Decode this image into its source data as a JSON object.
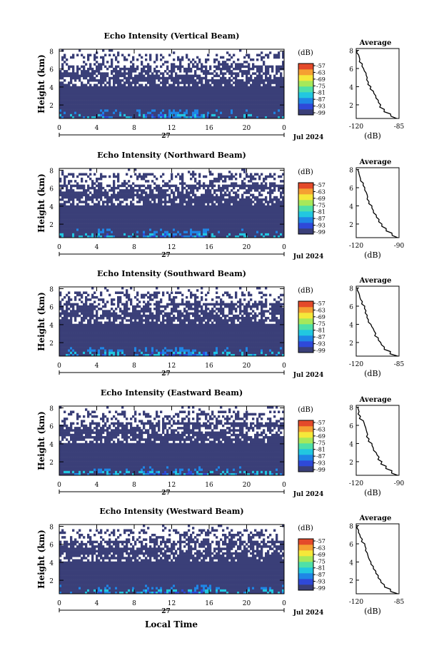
{
  "figure": {
    "x_axis_title": "Local Time",
    "day_label": "27",
    "date_label": "Jul 2024"
  },
  "colorbar": {
    "unit": "(dB)",
    "ticks": [
      "-57",
      "-63",
      "-69",
      "-75",
      "-81",
      "-87",
      "-93",
      "-99"
    ],
    "colors": [
      "#3a3f78",
      "#2f49d8",
      "#1f86e6",
      "#22c7e0",
      "#4fe0a8",
      "#a6e85a",
      "#f5e83a",
      "#f5a032",
      "#e44a2a"
    ]
  },
  "chart_data": [
    {
      "type": "heatmap",
      "title": "Echo Intensity (Vertical Beam)",
      "ylabel": "Height (km)",
      "x_ticks": [
        "0",
        "4",
        "8",
        "12",
        "16",
        "20",
        "0"
      ],
      "y_ticks": [
        "2",
        "4",
        "6",
        "8"
      ],
      "xlim": [
        0,
        24
      ],
      "ylim": [
        0.5,
        8.2
      ],
      "clim": [
        -99,
        -57
      ],
      "profile": {
        "title": "Average",
        "xlabel": "(dB)",
        "x_ticks": [
          "-120",
          "-85"
        ],
        "xlim": [
          -120,
          -85
        ],
        "y_ticks": [
          "2",
          "4",
          "6",
          "8"
        ],
        "heights": [
          0.5,
          1.0,
          1.5,
          2.0,
          2.5,
          3.0,
          3.5,
          4.0,
          4.5,
          5.0,
          5.5,
          6.0,
          6.5,
          7.0,
          7.5,
          8.0
        ],
        "values": [
          -87,
          -92,
          -97,
          -100,
          -102,
          -104,
          -106,
          -108,
          -110,
          -111,
          -112,
          -114,
          -115,
          -117,
          -118,
          -119
        ]
      }
    },
    {
      "type": "heatmap",
      "title": "Echo Intensity (Northward Beam)",
      "ylabel": "Height (km)",
      "x_ticks": [
        "0",
        "4",
        "8",
        "12",
        "16",
        "20",
        "0"
      ],
      "y_ticks": [
        "2",
        "4",
        "6",
        "8"
      ],
      "xlim": [
        0,
        24
      ],
      "ylim": [
        0.5,
        8.2
      ],
      "clim": [
        -99,
        -57
      ],
      "profile": {
        "title": "Average",
        "xlabel": "(dB)",
        "x_ticks": [
          "-120",
          "-90"
        ],
        "xlim": [
          -120,
          -90
        ],
        "y_ticks": [
          "2",
          "4",
          "6",
          "8"
        ],
        "heights": [
          0.5,
          1.0,
          1.5,
          2.0,
          2.5,
          3.0,
          3.5,
          4.0,
          4.5,
          5.0,
          5.5,
          6.0,
          6.5,
          7.0,
          7.5,
          8.0
        ],
        "values": [
          -91,
          -95,
          -99,
          -102,
          -104,
          -106,
          -108,
          -109,
          -111,
          -112,
          -113,
          -114,
          -115,
          -117,
          -118,
          -119
        ]
      }
    },
    {
      "type": "heatmap",
      "title": "Echo Intensity (Southward Beam)",
      "ylabel": "Height (km)",
      "x_ticks": [
        "0",
        "4",
        "8",
        "12",
        "16",
        "20",
        "0"
      ],
      "y_ticks": [
        "2",
        "4",
        "6",
        "8"
      ],
      "xlim": [
        0,
        24
      ],
      "ylim": [
        0.5,
        8.2
      ],
      "clim": [
        -99,
        -57
      ],
      "profile": {
        "title": "Average",
        "xlabel": "(dB)",
        "x_ticks": [
          "-120",
          "-85"
        ],
        "xlim": [
          -120,
          -85
        ],
        "y_ticks": [
          "2",
          "4",
          "6",
          "8"
        ],
        "heights": [
          0.5,
          1.0,
          1.5,
          2.0,
          2.5,
          3.0,
          3.5,
          4.0,
          4.5,
          5.0,
          5.5,
          6.0,
          6.5,
          7.0,
          7.5,
          8.0
        ],
        "values": [
          -86,
          -92,
          -97,
          -100,
          -102,
          -104,
          -106,
          -108,
          -110,
          -111,
          -112,
          -113,
          -115,
          -117,
          -118,
          -119
        ]
      }
    },
    {
      "type": "heatmap",
      "title": "Echo Intensity (Eastward Beam)",
      "ylabel": "Height (km)",
      "x_ticks": [
        "0",
        "4",
        "8",
        "12",
        "16",
        "20",
        "0"
      ],
      "y_ticks": [
        "2",
        "4",
        "6",
        "8"
      ],
      "xlim": [
        0,
        24
      ],
      "ylim": [
        0.5,
        8.2
      ],
      "clim": [
        -99,
        -57
      ],
      "profile": {
        "title": "Average",
        "xlabel": "(dB)",
        "x_ticks": [
          "-120",
          "-90"
        ],
        "xlim": [
          -120,
          -90
        ],
        "y_ticks": [
          "2",
          "4",
          "6",
          "8"
        ],
        "heights": [
          0.5,
          1.0,
          1.5,
          2.0,
          2.5,
          3.0,
          3.5,
          4.0,
          4.5,
          5.0,
          5.5,
          6.0,
          6.5,
          7.0,
          7.5,
          8.0
        ],
        "values": [
          -91,
          -95,
          -99,
          -102,
          -104,
          -106,
          -108,
          -109,
          -111,
          -112,
          -113,
          -114,
          -115,
          -117,
          -118,
          -119
        ]
      }
    },
    {
      "type": "heatmap",
      "title": "Echo Intensity (Westward Beam)",
      "ylabel": "Height (km)",
      "x_ticks": [
        "0",
        "4",
        "8",
        "12",
        "16",
        "20",
        "0"
      ],
      "y_ticks": [
        "2",
        "4",
        "6",
        "8"
      ],
      "xlim": [
        0,
        24
      ],
      "ylim": [
        0.5,
        8.2
      ],
      "clim": [
        -99,
        -57
      ],
      "profile": {
        "title": "Average",
        "xlabel": "(dB)",
        "x_ticks": [
          "-120",
          "-85"
        ],
        "xlim": [
          -120,
          -85
        ],
        "y_ticks": [
          "2",
          "4",
          "6",
          "8"
        ],
        "heights": [
          0.5,
          1.0,
          1.5,
          2.0,
          2.5,
          3.0,
          3.5,
          4.0,
          4.5,
          5.0,
          5.5,
          6.0,
          6.5,
          7.0,
          7.5,
          8.0
        ],
        "values": [
          -86,
          -92,
          -97,
          -100,
          -102,
          -104,
          -106,
          -108,
          -110,
          -111,
          -112,
          -113,
          -115,
          -117,
          -118,
          -119
        ]
      }
    }
  ]
}
